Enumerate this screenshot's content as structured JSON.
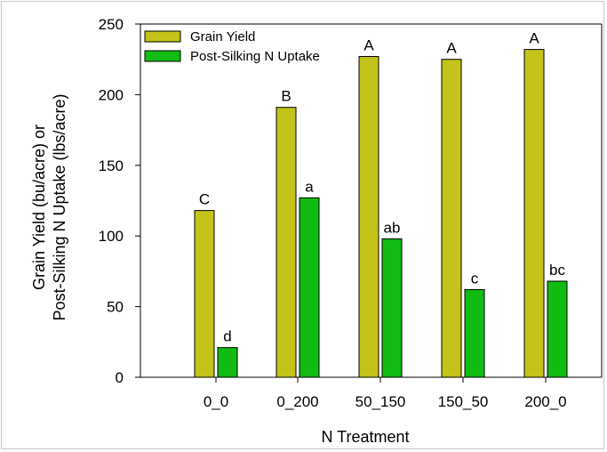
{
  "chart_data": {
    "type": "bar",
    "categories": [
      "0_0",
      "0_200",
      "50_150",
      "150_50",
      "200_0"
    ],
    "series": [
      {
        "name": "Grain Yield",
        "values": [
          118,
          191,
          227,
          225,
          232
        ],
        "labels": [
          "C",
          "B",
          "A",
          "A",
          "A"
        ],
        "color": "#c3c31a"
      },
      {
        "name": "Post-Silking N Uptake",
        "values": [
          21,
          127,
          98,
          62,
          68
        ],
        "labels": [
          "d",
          "a",
          "ab",
          "c",
          "bc"
        ],
        "color": "#11bb11"
      }
    ],
    "xlabel": "N Treatment",
    "ylabel_lines": [
      "Grain Yield (bu/acre) or",
      "Post-Silking N Uptake (lbs/acre)"
    ],
    "ylim": [
      0,
      250
    ],
    "yticks": [
      0,
      50,
      100,
      150,
      200,
      250
    ],
    "grid": false,
    "legend_position": "top-left"
  }
}
